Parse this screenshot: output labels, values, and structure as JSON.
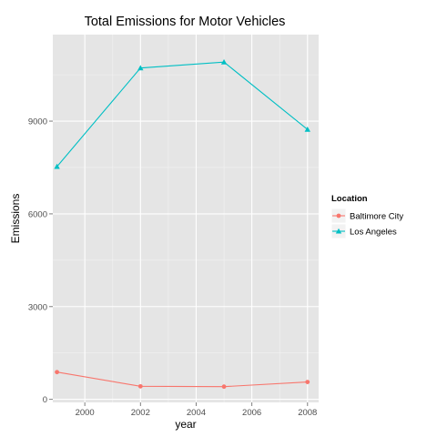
{
  "chart_data": {
    "type": "line",
    "title": "Total Emissions for Motor Vehicles",
    "xlabel": "year",
    "ylabel": "Emissions",
    "xlim": [
      1998.85,
      2008.4
    ],
    "ylim": [
      -100,
      11800
    ],
    "x_ticks": [
      2000,
      2002,
      2004,
      2006,
      2008
    ],
    "x_tick_labels": [
      "2000",
      "2002",
      "2004",
      "2006",
      "2008"
    ],
    "y_ticks": [
      0,
      3000,
      6000,
      9000
    ],
    "y_tick_labels": [
      "0",
      "3000",
      "6000",
      "9000"
    ],
    "grid": true,
    "legend": {
      "title": "Location",
      "position": "right"
    },
    "series": [
      {
        "name": "Baltimore City",
        "color": "#F8766D",
        "marker": "circle",
        "x": [
          1999,
          2002,
          2005,
          2008
        ],
        "values": [
          880,
          420,
          410,
          560
        ]
      },
      {
        "name": "Los Angeles",
        "color": "#00BFC4",
        "marker": "triangle",
        "x": [
          1999,
          2002,
          2005,
          2008
        ],
        "values": [
          7530,
          10720,
          10910,
          8730
        ]
      }
    ]
  }
}
